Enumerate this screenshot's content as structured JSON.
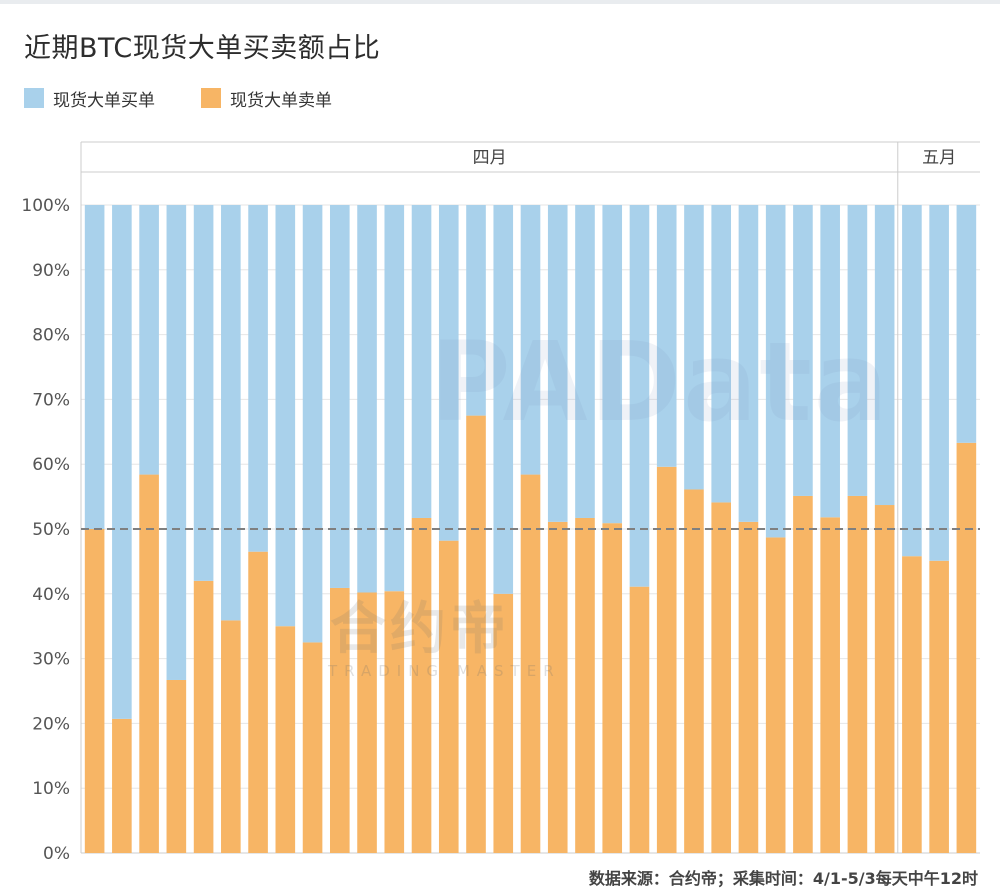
{
  "title": "近期BTC现货大单买卖额占比",
  "legend": {
    "buy_label": "现货大单买单",
    "sell_label": "现货大单卖单"
  },
  "colors": {
    "buy": "#a9d1eb",
    "sell": "#f7b565",
    "reference_line": "#7f7f7f",
    "grid": "#e6e6e6",
    "axis": "#cccccc"
  },
  "source_note": "数据来源：合约帝；采集时间：4/1-5/3每天中午12时",
  "watermarks": {
    "padata": "PAData",
    "brand_cn": "合约帝",
    "brand_en": "TRADING MASTER"
  },
  "chart_data": {
    "type": "bar",
    "stacked": true,
    "title": "近期BTC现货大单买卖额占比",
    "xlabel": "",
    "ylabel": "",
    "ylim": [
      0,
      100
    ],
    "y_ticks": [
      "0%",
      "10%",
      "20%",
      "30%",
      "40%",
      "50%",
      "60%",
      "70%",
      "80%",
      "90%",
      "100%"
    ],
    "grid": true,
    "legend_position": "top-left",
    "month_groups": [
      {
        "label": "四月",
        "count": 30
      },
      {
        "label": "五月",
        "count": 3
      }
    ],
    "reference_line": {
      "value": 50,
      "style": "dashed"
    },
    "series": [
      {
        "name": "现货大单卖单",
        "values": [
          50,
          20.7,
          58.4,
          26.7,
          42,
          35.9,
          46.5,
          35,
          32.5,
          40.9,
          40.2,
          40.4,
          51.7,
          48.2,
          67.5,
          40,
          58.4,
          51.1,
          51.7,
          50.9,
          41.1,
          59.6,
          56.1,
          54.1,
          51.1,
          48.7,
          55.1,
          51.8,
          55.1,
          53.7,
          45.8,
          45.1,
          63.3
        ]
      },
      {
        "name": "现货大单买单",
        "values": [
          50,
          79.3,
          41.6,
          73.3,
          58,
          64.1,
          53.5,
          65,
          67.5,
          59.1,
          59.8,
          59.6,
          48.3,
          51.8,
          32.5,
          60,
          41.6,
          48.9,
          48.3,
          49.1,
          58.9,
          40.4,
          43.9,
          45.9,
          48.9,
          51.3,
          44.9,
          48.2,
          44.9,
          46.3,
          54.2,
          54.9,
          36.7
        ]
      }
    ]
  }
}
